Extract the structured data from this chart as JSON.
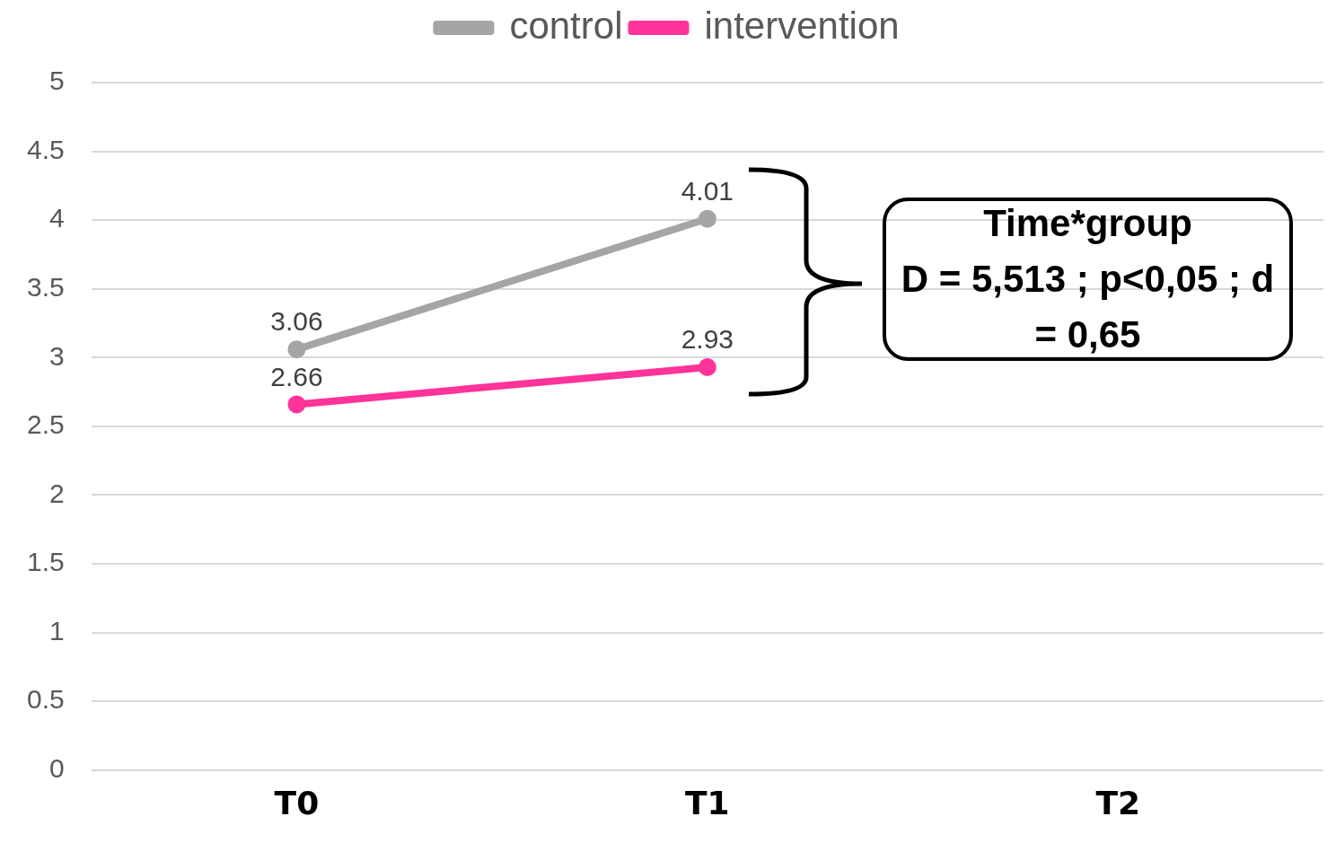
{
  "chart_data": {
    "type": "line",
    "categories": [
      "T0",
      "T1",
      "T2"
    ],
    "series": [
      {
        "name": "control",
        "color": "#a5a5a5",
        "values": [
          3.06,
          4.01,
          null
        ]
      },
      {
        "name": "intervention",
        "color": "#ff3399",
        "values": [
          2.66,
          2.93,
          null
        ]
      }
    ],
    "ylim": [
      0,
      5
    ],
    "yticks": [
      0,
      0.5,
      1,
      1.5,
      2,
      2.5,
      3,
      3.5,
      4,
      4.5,
      5
    ],
    "grid": "y",
    "legend": "top",
    "marker": "circle",
    "line_style": "solid",
    "data_labels": true,
    "annotations": [
      "Time*group",
      "D = 5,513 ; p<0,05 ; d = 0,65"
    ]
  }
}
